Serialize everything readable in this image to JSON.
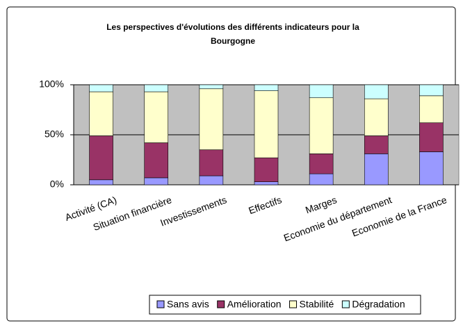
{
  "chart_data": {
    "type": "stacked_bar",
    "title": [
      "Les perspectives d'évolutions des différents indicateurs pour la",
      "Bourgogne"
    ],
    "categories": [
      "Activité (CA)",
      "Situation financière",
      "Investissements",
      "Effectifs",
      "Marges",
      "Economie du département",
      "Economie de la France"
    ],
    "series": [
      {
        "name": "Sans avis",
        "color": "#9999ff",
        "values": [
          5,
          7,
          9,
          3,
          11,
          31,
          33
        ]
      },
      {
        "name": "Amélioration",
        "color": "#993366",
        "values": [
          44,
          35,
          26,
          24,
          20,
          18,
          29
        ]
      },
      {
        "name": "Stabilité",
        "color": "#ffffcc",
        "values": [
          44,
          51,
          61,
          67,
          56,
          37,
          27
        ]
      },
      {
        "name": "Dégradation",
        "color": "#ccffff",
        "values": [
          7,
          7,
          4,
          6,
          13,
          14,
          11
        ]
      }
    ],
    "ylim": [
      0,
      100
    ],
    "yticks": [
      {
        "value": 0,
        "label": "0%"
      },
      {
        "value": 50,
        "label": "50%"
      },
      {
        "value": 100,
        "label": "100%"
      }
    ],
    "grid": true,
    "legend": "bottom"
  }
}
